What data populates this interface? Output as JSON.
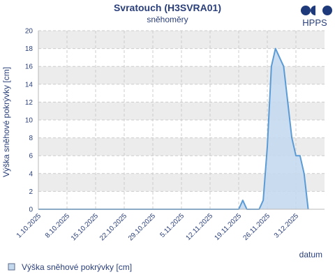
{
  "chart_data": {
    "type": "area",
    "title": "Svratouch (H3SVRA01)",
    "subtitle": "sněhoměry",
    "ylabel": "Výška sněhové pokrývky [cm]",
    "xlabel": "datum",
    "ylim": [
      0,
      20
    ],
    "y_ticks": [
      "0",
      "2",
      "4",
      "6",
      "8",
      "10",
      "12",
      "14",
      "16",
      "18",
      "20"
    ],
    "x_range": [
      "2025-10-01",
      "2025-12-10"
    ],
    "x_ticks": [
      "1.10.2025",
      "8.10.2025",
      "15.10.2025",
      "22.10.2025",
      "29.10.2025",
      "5.11.2025",
      "12.11.2025",
      "19.11.2025",
      "26.11.2025",
      "3.12.2025"
    ],
    "grid": true,
    "legend_position": "bottom-left",
    "series": [
      {
        "name": "Výška sněhové pokrývky [cm]",
        "color": "#5b9bd5",
        "fill": "#c5d9ee",
        "points": [
          [
            "2025-10-01",
            0
          ],
          [
            "2025-11-19",
            0
          ],
          [
            "2025-11-20",
            1
          ],
          [
            "2025-11-21",
            0
          ],
          [
            "2025-11-24",
            0
          ],
          [
            "2025-11-25",
            1
          ],
          [
            "2025-11-26",
            7
          ],
          [
            "2025-11-27",
            16
          ],
          [
            "2025-11-28",
            18
          ],
          [
            "2025-11-29",
            17
          ],
          [
            "2025-11-30",
            16
          ],
          [
            "2025-12-01",
            12
          ],
          [
            "2025-12-02",
            8
          ],
          [
            "2025-12-03",
            6
          ],
          [
            "2025-12-04",
            6
          ],
          [
            "2025-12-05",
            4
          ],
          [
            "2025-12-06",
            0
          ]
        ]
      }
    ]
  },
  "logo": {
    "text": "HPPS",
    "color": "#1f3a7a"
  },
  "colors": {
    "text": "#2a3f7a",
    "band": "#ececec",
    "grid": "#cccccc"
  }
}
